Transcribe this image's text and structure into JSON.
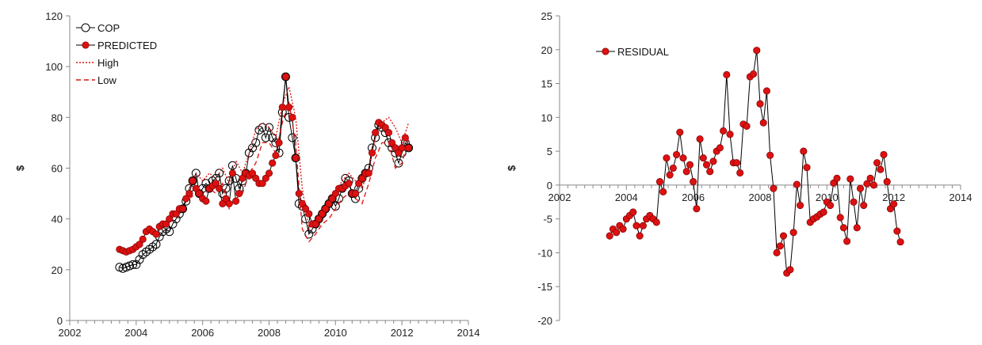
{
  "chart_data": [
    {
      "type": "line",
      "ylabel": "$",
      "xlim": [
        2002,
        2014
      ],
      "ylim": [
        0,
        120
      ],
      "x_ticks": [
        2002,
        2004,
        2006,
        2008,
        2010,
        2012,
        2014
      ],
      "y_ticks": [
        0,
        20,
        40,
        60,
        80,
        100,
        120
      ],
      "legend_position": "top-left",
      "series": [
        {
          "name": "COP",
          "style": "open-circle",
          "color": "#000000",
          "x": [
            2003.5,
            2003.6,
            2003.7,
            2003.8,
            2003.9,
            2004.0,
            2004.1,
            2004.2,
            2004.3,
            2004.4,
            2004.5,
            2004.6,
            2004.7,
            2004.8,
            2004.9,
            2005.0,
            2005.1,
            2005.2,
            2005.3,
            2005.4,
            2005.5,
            2005.6,
            2005.7,
            2005.8,
            2005.9,
            2006.0,
            2006.1,
            2006.2,
            2006.3,
            2006.4,
            2006.5,
            2006.6,
            2006.7,
            2006.8,
            2006.9,
            2007.0,
            2007.1,
            2007.2,
            2007.3,
            2007.4,
            2007.5,
            2007.6,
            2007.7,
            2007.8,
            2007.9,
            2008.0,
            2008.1,
            2008.2,
            2008.3,
            2008.4,
            2008.5,
            2008.6,
            2008.7,
            2008.8,
            2008.9,
            2009.0,
            2009.1,
            2009.2,
            2009.3,
            2009.4,
            2009.5,
            2009.6,
            2009.7,
            2009.8,
            2009.9,
            2010.0,
            2010.1,
            2010.2,
            2010.3,
            2010.4,
            2010.5,
            2010.6,
            2010.7,
            2010.8,
            2010.9,
            2011.0,
            2011.1,
            2011.2,
            2011.3,
            2011.4,
            2011.5,
            2011.6,
            2011.7,
            2011.8,
            2011.9,
            2012.0,
            2012.1,
            2012.2
          ],
          "values": [
            21,
            20.5,
            21,
            21.5,
            22,
            22,
            24,
            26,
            27,
            28,
            29,
            30,
            33,
            35,
            36,
            35,
            38,
            40,
            42,
            44,
            47,
            52,
            55,
            58,
            50,
            52,
            54,
            52,
            55,
            56,
            58,
            50,
            52,
            55,
            61,
            56,
            52,
            55,
            58,
            66,
            68,
            70,
            75,
            76,
            72,
            76,
            72,
            70,
            66,
            82,
            96,
            80,
            72,
            64,
            46,
            45,
            40,
            34,
            36,
            38,
            40,
            42,
            44,
            46,
            48,
            45,
            48,
            52,
            56,
            55,
            50,
            48,
            52,
            56,
            58,
            60,
            68,
            72,
            77,
            76,
            74,
            70,
            68,
            66,
            62,
            66,
            70,
            68
          ]
        },
        {
          "name": "PREDICTED",
          "style": "filled-circle",
          "color": "#dd1111",
          "x": [
            2003.5,
            2003.6,
            2003.7,
            2003.8,
            2003.9,
            2004.0,
            2004.1,
            2004.2,
            2004.3,
            2004.4,
            2004.5,
            2004.6,
            2004.7,
            2004.8,
            2004.9,
            2005.0,
            2005.1,
            2005.2,
            2005.3,
            2005.4,
            2005.5,
            2005.6,
            2005.7,
            2005.8,
            2005.9,
            2006.0,
            2006.1,
            2006.2,
            2006.3,
            2006.4,
            2006.5,
            2006.6,
            2006.7,
            2006.8,
            2006.9,
            2007.0,
            2007.1,
            2007.2,
            2007.3,
            2007.4,
            2007.5,
            2007.6,
            2007.7,
            2007.8,
            2007.9,
            2008.0,
            2008.1,
            2008.2,
            2008.3,
            2008.4,
            2008.5,
            2008.6,
            2008.7,
            2008.8,
            2008.9,
            2009.0,
            2009.1,
            2009.2,
            2009.3,
            2009.4,
            2009.5,
            2009.6,
            2009.7,
            2009.8,
            2009.9,
            2010.0,
            2010.1,
            2010.2,
            2010.3,
            2010.4,
            2010.5,
            2010.6,
            2010.7,
            2010.8,
            2010.9,
            2011.0,
            2011.1,
            2011.2,
            2011.3,
            2011.4,
            2011.5,
            2011.6,
            2011.7,
            2011.8,
            2011.9,
            2012.0,
            2012.1,
            2012.2
          ],
          "values": [
            28,
            27.5,
            27,
            27.5,
            28,
            29,
            30,
            32,
            35,
            36,
            35,
            34,
            37,
            38,
            38,
            40,
            42,
            42,
            44,
            44,
            48,
            50,
            55,
            52,
            50,
            48,
            47,
            52,
            53,
            54,
            52,
            46,
            48,
            46,
            58,
            47,
            50,
            56,
            58,
            57,
            58,
            56,
            54,
            54,
            56,
            58,
            62,
            65,
            70,
            84,
            96,
            84,
            80,
            64,
            50,
            46,
            44,
            42,
            38,
            38,
            40,
            42,
            44,
            46,
            48,
            50,
            52,
            52,
            53,
            54,
            50,
            50,
            54,
            56,
            58,
            58,
            66,
            74,
            78,
            77,
            76,
            74,
            70,
            68,
            66,
            68,
            72,
            68
          ]
        },
        {
          "name": "High",
          "style": "dotted-line",
          "color": "#dd1111",
          "x": [
            2005.6,
            2005.8,
            2006.0,
            2006.2,
            2006.4,
            2006.6,
            2006.8,
            2007.0,
            2007.2,
            2007.4,
            2007.6,
            2007.8,
            2008.0,
            2008.2,
            2008.4,
            2008.6,
            2008.8,
            2009.0,
            2009.2,
            2009.4,
            2009.6,
            2009.8,
            2010.0,
            2010.2,
            2010.4,
            2010.6,
            2010.8,
            2011.0,
            2011.2,
            2011.4,
            2011.6,
            2011.8,
            2012.0,
            2012.2
          ],
          "values": [
            52,
            58,
            55,
            58,
            56,
            60,
            54,
            63,
            58,
            66,
            75,
            78,
            76,
            72,
            85,
            92,
            80,
            52,
            36,
            40,
            44,
            46,
            50,
            55,
            58,
            55,
            52,
            60,
            72,
            78,
            80,
            76,
            70,
            78
          ]
        },
        {
          "name": "Low",
          "style": "dashed-line",
          "color": "#dd1111",
          "x": [
            2005.6,
            2005.8,
            2006.0,
            2006.2,
            2006.4,
            2006.6,
            2006.8,
            2007.0,
            2007.2,
            2007.4,
            2007.6,
            2007.8,
            2008.0,
            2008.2,
            2008.4,
            2008.6,
            2008.8,
            2009.0,
            2009.2,
            2009.4,
            2009.6,
            2009.8,
            2010.0,
            2010.2,
            2010.4,
            2010.6,
            2010.8,
            2011.0,
            2011.2,
            2011.4,
            2011.6,
            2011.8,
            2012.0,
            2012.2
          ],
          "values": [
            48,
            50,
            48,
            52,
            50,
            54,
            44,
            48,
            50,
            58,
            62,
            70,
            70,
            66,
            78,
            86,
            70,
            36,
            31,
            34,
            38,
            40,
            44,
            48,
            50,
            48,
            46,
            54,
            64,
            70,
            70,
            60,
            62,
            72
          ]
        }
      ]
    },
    {
      "type": "line",
      "ylabel": "$",
      "xlim": [
        2002,
        2014
      ],
      "ylim": [
        -20,
        25
      ],
      "x_ticks": [
        2002,
        2004,
        2006,
        2008,
        2010,
        2012,
        2014
      ],
      "y_ticks": [
        -20,
        -15,
        -10,
        -5,
        0,
        5,
        10,
        15,
        20,
        25
      ],
      "legend_position": "top-left",
      "series": [
        {
          "name": "RESIDUAL",
          "style": "filled-circle",
          "color": "#dd1111",
          "x": [
            2003.5,
            2003.6,
            2003.7,
            2003.8,
            2003.9,
            2004.0,
            2004.1,
            2004.2,
            2004.3,
            2004.4,
            2004.5,
            2004.6,
            2004.7,
            2004.8,
            2004.9,
            2005.0,
            2005.1,
            2005.2,
            2005.3,
            2005.4,
            2005.5,
            2005.6,
            2005.7,
            2005.8,
            2005.9,
            2006.0,
            2006.1,
            2006.2,
            2006.3,
            2006.4,
            2006.5,
            2006.6,
            2006.7,
            2006.8,
            2006.9,
            2007.0,
            2007.1,
            2007.2,
            2007.3,
            2007.4,
            2007.5,
            2007.6,
            2007.7,
            2007.8,
            2007.9,
            2008.0,
            2008.1,
            2008.2,
            2008.3,
            2008.4,
            2008.5,
            2008.6,
            2008.7,
            2008.8,
            2008.9,
            2009.0,
            2009.1,
            2009.2,
            2009.3,
            2009.4,
            2009.5,
            2009.6,
            2009.7,
            2009.8,
            2009.9,
            2010.0,
            2010.1,
            2010.2,
            2010.3,
            2010.4,
            2010.5,
            2010.6,
            2010.7,
            2010.8,
            2010.9,
            2011.0,
            2011.1,
            2011.2,
            2011.3,
            2011.4,
            2011.5,
            2011.6,
            2011.7,
            2011.8,
            2011.9,
            2012.0,
            2012.1,
            2012.2
          ],
          "values": [
            -7.5,
            -6.5,
            -7,
            -6,
            -6.5,
            -5,
            -4.5,
            -4,
            -6,
            -7.5,
            -6,
            -5,
            -4.5,
            -5,
            -5.5,
            0.5,
            -1,
            4,
            1.5,
            2.5,
            4.5,
            7.8,
            4,
            2,
            3,
            0.5,
            -3.5,
            6.8,
            4,
            3,
            2,
            3.5,
            5,
            5.5,
            8,
            16.3,
            7.5,
            3.3,
            3.3,
            1.8,
            9,
            8.7,
            16,
            16.4,
            19.9,
            12,
            9.2,
            13.9,
            4.4,
            -0.5,
            -10,
            -9,
            -7.5,
            -13,
            -12.5,
            -7,
            0.1,
            -3,
            5,
            2.6,
            -5.5,
            -5,
            -4.7,
            -4.3,
            -4,
            -2.5,
            -3,
            0.3,
            1,
            -4.8,
            -6.3,
            -8.3,
            0.9,
            -2.5,
            -6.3,
            -0.5,
            -3,
            0.2,
            1,
            0,
            3.3,
            2.3,
            4.5,
            0.5,
            -3.5,
            -2.8,
            -6.8,
            -8.4
          ]
        }
      ]
    }
  ]
}
